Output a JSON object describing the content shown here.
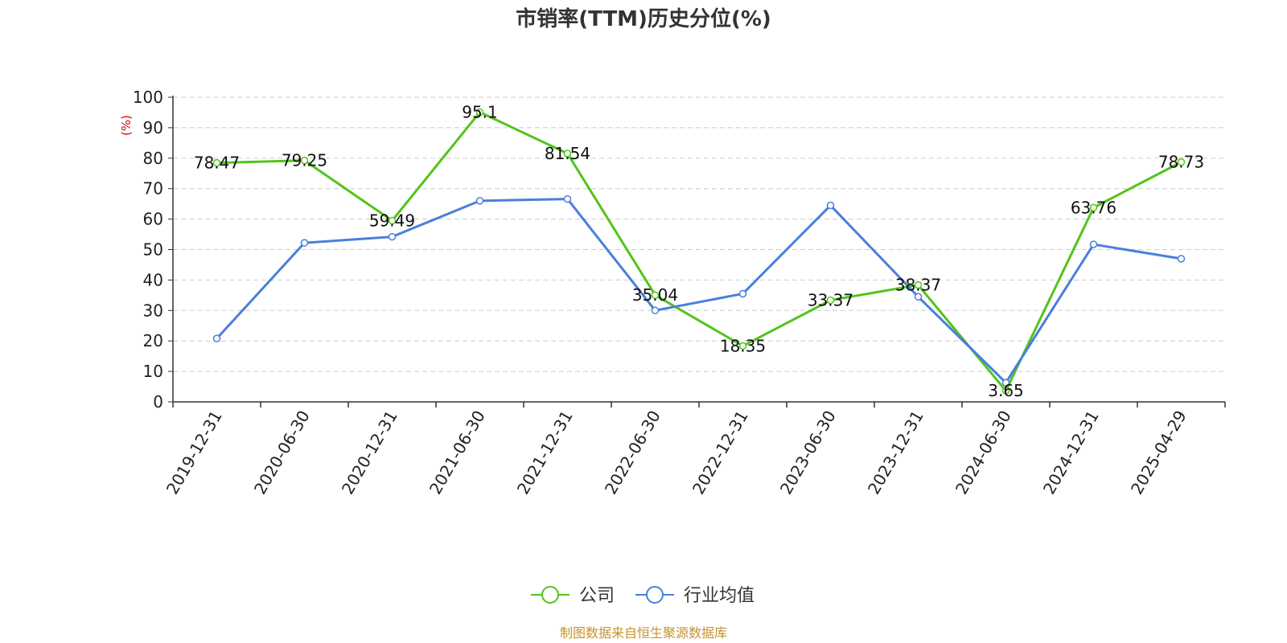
{
  "chart_data": {
    "type": "line",
    "title": "市销率(TTM)历史分位(%)",
    "ylabel": "(%)",
    "ylim": [
      0,
      100
    ],
    "y_ticks": [
      0,
      10,
      20,
      30,
      40,
      50,
      60,
      70,
      80,
      90,
      100
    ],
    "categories": [
      "2019-12-31",
      "2020-06-30",
      "2020-12-31",
      "2021-06-30",
      "2021-12-31",
      "2022-06-30",
      "2022-12-31",
      "2023-06-30",
      "2023-12-31",
      "2024-06-30",
      "2024-12-31",
      "2025-04-29"
    ],
    "series": [
      {
        "name": "公司",
        "color": "#52c41a",
        "values": [
          78.47,
          79.25,
          59.49,
          95.1,
          81.54,
          35.04,
          18.35,
          33.37,
          38.37,
          3.65,
          63.76,
          78.73
        ],
        "labels": [
          "78.47",
          "79.25",
          "59.49",
          "95.1",
          "81.54",
          "35.04",
          "18.35",
          "33.37",
          "38.37",
          "3.65",
          "63.76",
          "78.73"
        ]
      },
      {
        "name": "行业均值",
        "color": "#4a7fdc",
        "values": [
          20.8,
          52.2,
          54.2,
          66.0,
          66.6,
          30.0,
          35.5,
          64.5,
          34.5,
          6.3,
          51.7,
          47.0
        ]
      }
    ],
    "grid": "horizontal-dashed",
    "legend_position": "bottom-center",
    "source": "制图数据来自恒生聚源数据库",
    "source_color": "#c8922a",
    "ylabel_color": "#e00000"
  }
}
